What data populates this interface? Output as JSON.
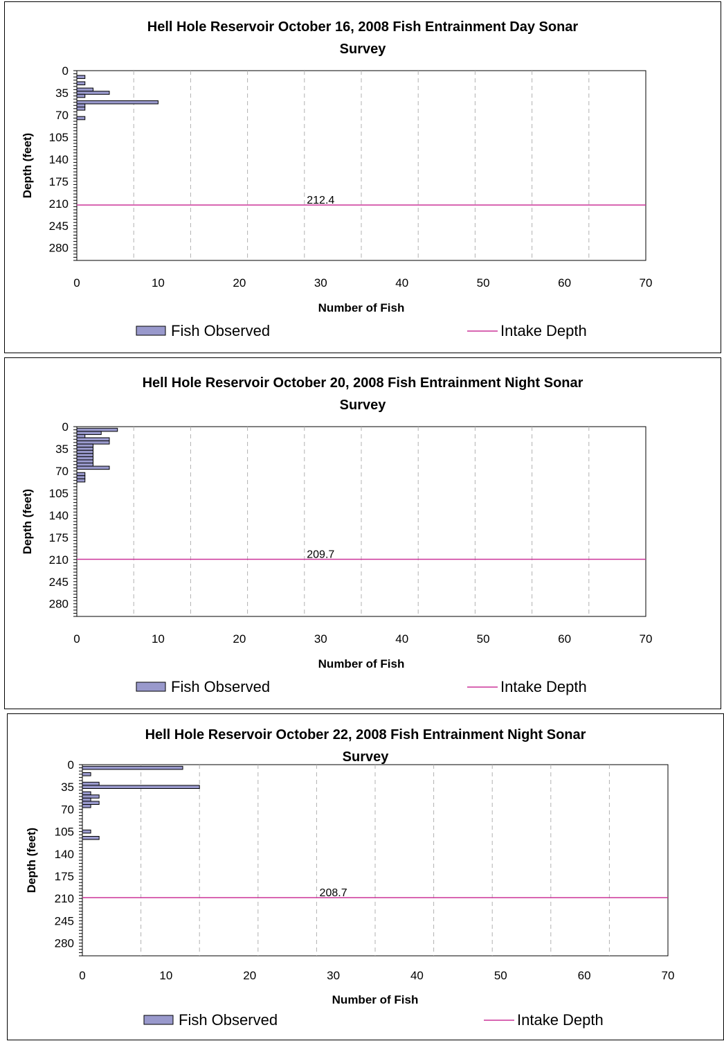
{
  "chart_data": [
    {
      "type": "bar",
      "orientation": "horizontal",
      "title_line1": "Hell Hole Reservoir October 16, 2008 Fish Entrainment Day Sonar",
      "title_line2": "Survey",
      "xlabel": "Number of Fish",
      "ylabel": "Depth (feet)",
      "xlim": [
        0,
        70
      ],
      "ylim": [
        0,
        300
      ],
      "y_inverted": true,
      "x_ticks": [
        0,
        10,
        20,
        30,
        40,
        50,
        60,
        70
      ],
      "y_ticks": [
        0,
        35,
        70,
        105,
        140,
        175,
        210,
        245,
        280
      ],
      "grid_x": true,
      "legend_position": "bottom",
      "legend": {
        "bars": "Fish Observed",
        "line": "Intake Depth"
      },
      "bar_color": "#9999CC",
      "line_color": "#CC3399",
      "series": [
        {
          "name": "Fish Observed",
          "depths": [
            10,
            20,
            30,
            35,
            40,
            50,
            55,
            60,
            75
          ],
          "values": [
            1,
            1,
            2,
            4,
            1,
            10,
            1,
            1,
            1
          ]
        }
      ],
      "intake_depth": {
        "name": "Intake Depth",
        "value": 212.4,
        "label": "212.4"
      }
    },
    {
      "type": "bar",
      "orientation": "horizontal",
      "title_line1": "Hell Hole Reservoir October 20, 2008 Fish Entrainment Night Sonar",
      "title_line2": "Survey",
      "xlabel": "Number of Fish",
      "ylabel": "Depth (feet)",
      "xlim": [
        0,
        70
      ],
      "ylim": [
        0,
        300
      ],
      "y_inverted": true,
      "x_ticks": [
        0,
        10,
        20,
        30,
        40,
        50,
        60,
        70
      ],
      "y_ticks": [
        0,
        35,
        70,
        105,
        140,
        175,
        210,
        245,
        280
      ],
      "grid_x": true,
      "legend_position": "bottom",
      "legend": {
        "bars": "Fish Observed",
        "line": "Intake Depth"
      },
      "bar_color": "#9999CC",
      "line_color": "#CC3399",
      "series": [
        {
          "name": "Fish Observed",
          "depths": [
            5,
            10,
            15,
            20,
            25,
            30,
            35,
            40,
            45,
            50,
            55,
            60,
            65,
            75,
            80,
            85
          ],
          "values": [
            5,
            3,
            1,
            4,
            4,
            2,
            2,
            2,
            2,
            2,
            2,
            2,
            4,
            1,
            1,
            1
          ]
        }
      ],
      "intake_depth": {
        "name": "Intake Depth",
        "value": 209.7,
        "label": "209.7"
      }
    },
    {
      "type": "bar",
      "orientation": "horizontal",
      "title_line1": "Hell Hole Reservoir October 22, 2008 Fish Entrainment Night Sonar",
      "title_line2": "Survey",
      "xlabel": "Number of Fish",
      "ylabel": "Depth (feet)",
      "xlim": [
        0,
        70
      ],
      "ylim": [
        0,
        300
      ],
      "y_inverted": true,
      "x_ticks": [
        0,
        10,
        20,
        30,
        40,
        50,
        60,
        70
      ],
      "y_ticks": [
        0,
        35,
        70,
        105,
        140,
        175,
        210,
        245,
        280
      ],
      "grid_x": true,
      "legend_position": "bottom",
      "legend": {
        "bars": "Fish Observed",
        "line": "Intake Depth"
      },
      "bar_color": "#9999CC",
      "line_color": "#CC3399",
      "series": [
        {
          "name": "Fish Observed",
          "depths": [
            5,
            15,
            30,
            35,
            45,
            50,
            55,
            60,
            65,
            105,
            115
          ],
          "values": [
            12,
            1,
            2,
            14,
            1,
            2,
            1,
            2,
            1,
            1,
            2
          ]
        }
      ],
      "intake_depth": {
        "name": "Intake Depth",
        "value": 208.7,
        "label": "208.7"
      }
    }
  ]
}
